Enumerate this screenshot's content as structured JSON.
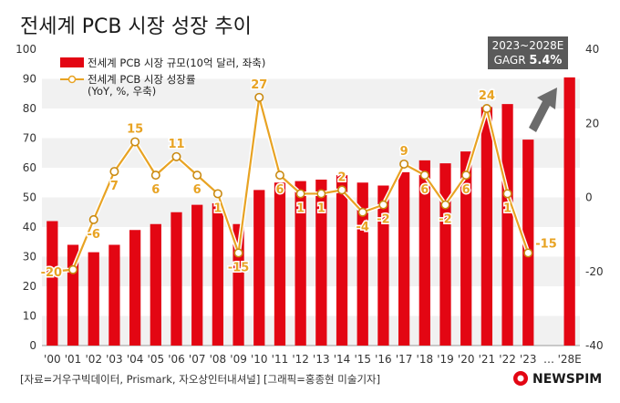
{
  "chart_data": {
    "type": "bar",
    "title": "전세계 PCB 시장 성장 추이",
    "categories": [
      "'00",
      "'01",
      "'02",
      "'03",
      "'04",
      "'05",
      "'06",
      "'07",
      "'08",
      "'09",
      "'10",
      "'11",
      "'12",
      "'13",
      "'14",
      "'15",
      "'16",
      "'17",
      "'18",
      "'19",
      "'20",
      "'21",
      "'22",
      "'23",
      "…",
      "'28E"
    ],
    "series": [
      {
        "name": "전세계 PCB 시장 규모(10억 달러, 좌축)",
        "type": "bar",
        "axis": "left",
        "color": "#e30613",
        "values": [
          42,
          34,
          31.5,
          34,
          39,
          41,
          45,
          47.5,
          48,
          41,
          52.5,
          55,
          55.5,
          56,
          57.5,
          55,
          54,
          58.5,
          62.5,
          61.5,
          65.5,
          80.5,
          81.5,
          69.5,
          null,
          90.5
        ]
      },
      {
        "name": "전세계 PCB 시장 성장률",
        "name_sub": "(YoY, %, 우축)",
        "type": "line",
        "axis": "right",
        "color": "#e8a323",
        "values": [
          -20,
          -19.5,
          -6,
          7,
          15,
          6,
          11,
          6,
          1,
          -15,
          27,
          6,
          1,
          1,
          2,
          -4,
          -2,
          9,
          6,
          -2,
          6,
          24,
          1,
          -15,
          null,
          null
        ],
        "labels": [
          "-20",
          "",
          "-6",
          "7",
          "15",
          "6",
          "11",
          "6",
          "1",
          "-15",
          "27",
          "6",
          "1",
          "1",
          "2",
          "-4",
          "-2",
          "9",
          "6",
          "-2",
          "6",
          "24",
          "1",
          "-15",
          "",
          ""
        ]
      }
    ],
    "y_left": {
      "min": 0,
      "max": 100,
      "ticks": [
        "0",
        "10",
        "20",
        "30",
        "40",
        "50",
        "60",
        "70",
        "80",
        "90",
        "100"
      ]
    },
    "y_right": {
      "min": -40,
      "max": 40,
      "ticks": [
        "-40",
        "-20",
        "0",
        "20",
        "40"
      ]
    },
    "grid": "horizontal-bands",
    "legend": "top-left",
    "annotation": {
      "line1": "2023~2028E",
      "line2": "GAGR ",
      "line2_bold": "5.4%"
    }
  },
  "source": "[자료=거우구빅데이터, Prismark, 자오상인터내셔널] [그래픽=홍종현 미술기자]",
  "logo": "NEWSPIM"
}
